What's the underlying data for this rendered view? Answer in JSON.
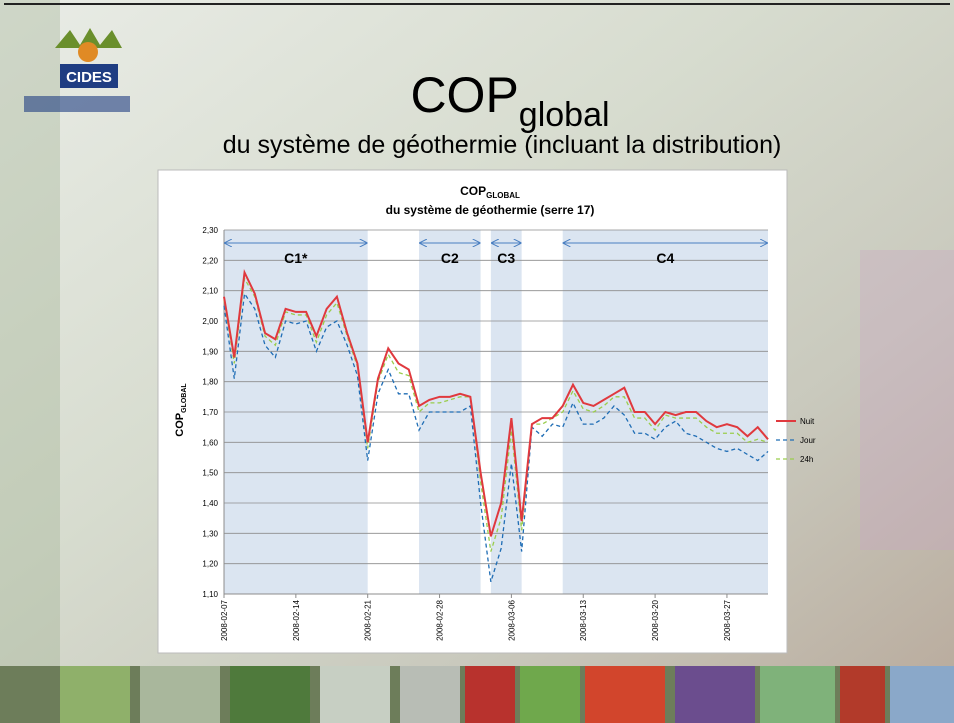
{
  "header": {
    "logo": "CIDES",
    "title": "COP",
    "title_sub": "global",
    "subtitle": "du système de géothermie (incluant la distribution)"
  },
  "chart_data": {
    "type": "line",
    "title": "COP",
    "title_sub": "GLOBAL",
    "subtitle": "du système de géothermie (serre 17)",
    "y_label": "COP",
    "y_label_sub": "GLOBAL",
    "x": [
      "2008-02-07",
      "2008-02-08",
      "2008-02-09",
      "2008-02-10",
      "2008-02-11",
      "2008-02-12",
      "2008-02-13",
      "2008-02-14",
      "2008-02-15",
      "2008-02-16",
      "2008-02-17",
      "2008-02-18",
      "2008-02-19",
      "2008-02-20",
      "2008-02-21",
      "2008-02-22",
      "2008-02-23",
      "2008-02-24",
      "2008-02-25",
      "2008-02-26",
      "2008-02-27",
      "2008-02-28",
      "2008-02-29",
      "2008-03-01",
      "2008-03-02",
      "2008-03-03",
      "2008-03-04",
      "2008-03-05",
      "2008-03-06",
      "2008-03-07",
      "2008-03-08",
      "2008-03-09",
      "2008-03-10",
      "2008-03-11",
      "2008-03-12",
      "2008-03-13",
      "2008-03-14",
      "2008-03-15",
      "2008-03-16",
      "2008-03-17",
      "2008-03-18",
      "2008-03-19",
      "2008-03-20",
      "2008-03-21",
      "2008-03-22",
      "2008-03-23",
      "2008-03-24",
      "2008-03-25",
      "2008-03-26",
      "2008-03-27",
      "2008-03-28",
      "2008-03-29",
      "2008-03-30",
      "2008-03-31"
    ],
    "xticks": [
      "2008-02-07",
      "2008-02-14",
      "2008-02-21",
      "2008-02-28",
      "2008-03-06",
      "2008-03-13",
      "2008-03-20",
      "2008-03-27"
    ],
    "ylim": [
      1.1,
      2.3
    ],
    "yticks": [
      {
        "value": 1.1,
        "label": "1,10"
      },
      {
        "value": 1.2,
        "label": "1,20"
      },
      {
        "value": 1.3,
        "label": "1,30"
      },
      {
        "value": 1.4,
        "label": "1,40"
      },
      {
        "value": 1.5,
        "label": "1,50"
      },
      {
        "value": 1.6,
        "label": "1,60"
      },
      {
        "value": 1.7,
        "label": "1,70"
      },
      {
        "value": 1.8,
        "label": "1,80"
      },
      {
        "value": 1.9,
        "label": "1,90"
      },
      {
        "value": 2.0,
        "label": "2,00"
      },
      {
        "value": 2.1,
        "label": "2,10"
      },
      {
        "value": 2.2,
        "label": "2,20"
      },
      {
        "value": 2.3,
        "label": "2,30"
      }
    ],
    "grid": true,
    "legend": "right",
    "periods": [
      {
        "label": "C1*",
        "start": "2008-02-07",
        "end": "2008-02-21"
      },
      {
        "label": "C2",
        "start": "2008-02-26",
        "end": "2008-03-03"
      },
      {
        "label": "C3",
        "start": "2008-03-04",
        "end": "2008-03-07"
      },
      {
        "label": "C4",
        "start": "2008-03-11",
        "end": "2008-03-31"
      }
    ],
    "series": [
      {
        "name": "Nuit",
        "color": "#e0393e",
        "dash": "none",
        "values": [
          2.08,
          1.88,
          2.16,
          2.09,
          1.96,
          1.94,
          2.04,
          2.03,
          2.03,
          1.95,
          2.04,
          2.08,
          1.96,
          1.86,
          1.6,
          1.81,
          1.91,
          1.86,
          1.84,
          1.72,
          1.74,
          1.75,
          1.75,
          1.76,
          1.75,
          1.5,
          1.29,
          1.4,
          1.68,
          1.34,
          1.66,
          1.68,
          1.68,
          1.72,
          1.79,
          1.73,
          1.72,
          1.74,
          1.76,
          1.78,
          1.7,
          1.7,
          1.66,
          1.7,
          1.69,
          1.7,
          1.7,
          1.67,
          1.65,
          1.66,
          1.65,
          1.62,
          1.65,
          1.61
        ]
      },
      {
        "name": "Jour",
        "color": "#1f6db5",
        "dash": "4 3",
        "values": [
          2.05,
          1.81,
          2.09,
          2.04,
          1.92,
          1.88,
          2.0,
          1.99,
          2.0,
          1.9,
          1.98,
          2.0,
          1.92,
          1.82,
          1.54,
          1.76,
          1.84,
          1.76,
          1.76,
          1.64,
          1.7,
          1.7,
          1.7,
          1.7,
          1.72,
          1.4,
          1.14,
          1.25,
          1.53,
          1.24,
          1.65,
          1.62,
          1.66,
          1.65,
          1.73,
          1.66,
          1.66,
          1.68,
          1.72,
          1.69,
          1.63,
          1.63,
          1.61,
          1.65,
          1.67,
          1.63,
          1.62,
          1.6,
          1.58,
          1.57,
          1.58,
          1.56,
          1.54,
          1.57
        ]
      },
      {
        "name": "24h",
        "color": "#9acd4c",
        "dash": "4 3",
        "values": [
          2.07,
          1.86,
          2.14,
          2.08,
          1.95,
          1.92,
          2.03,
          2.02,
          2.02,
          1.93,
          2.02,
          2.06,
          1.95,
          1.85,
          1.58,
          1.8,
          1.89,
          1.83,
          1.82,
          1.7,
          1.73,
          1.73,
          1.74,
          1.75,
          1.75,
          1.47,
          1.24,
          1.35,
          1.64,
          1.31,
          1.66,
          1.66,
          1.68,
          1.7,
          1.77,
          1.71,
          1.7,
          1.72,
          1.75,
          1.75,
          1.68,
          1.68,
          1.64,
          1.69,
          1.68,
          1.68,
          1.68,
          1.65,
          1.63,
          1.63,
          1.63,
          1.6,
          1.61,
          1.6
        ]
      }
    ]
  }
}
